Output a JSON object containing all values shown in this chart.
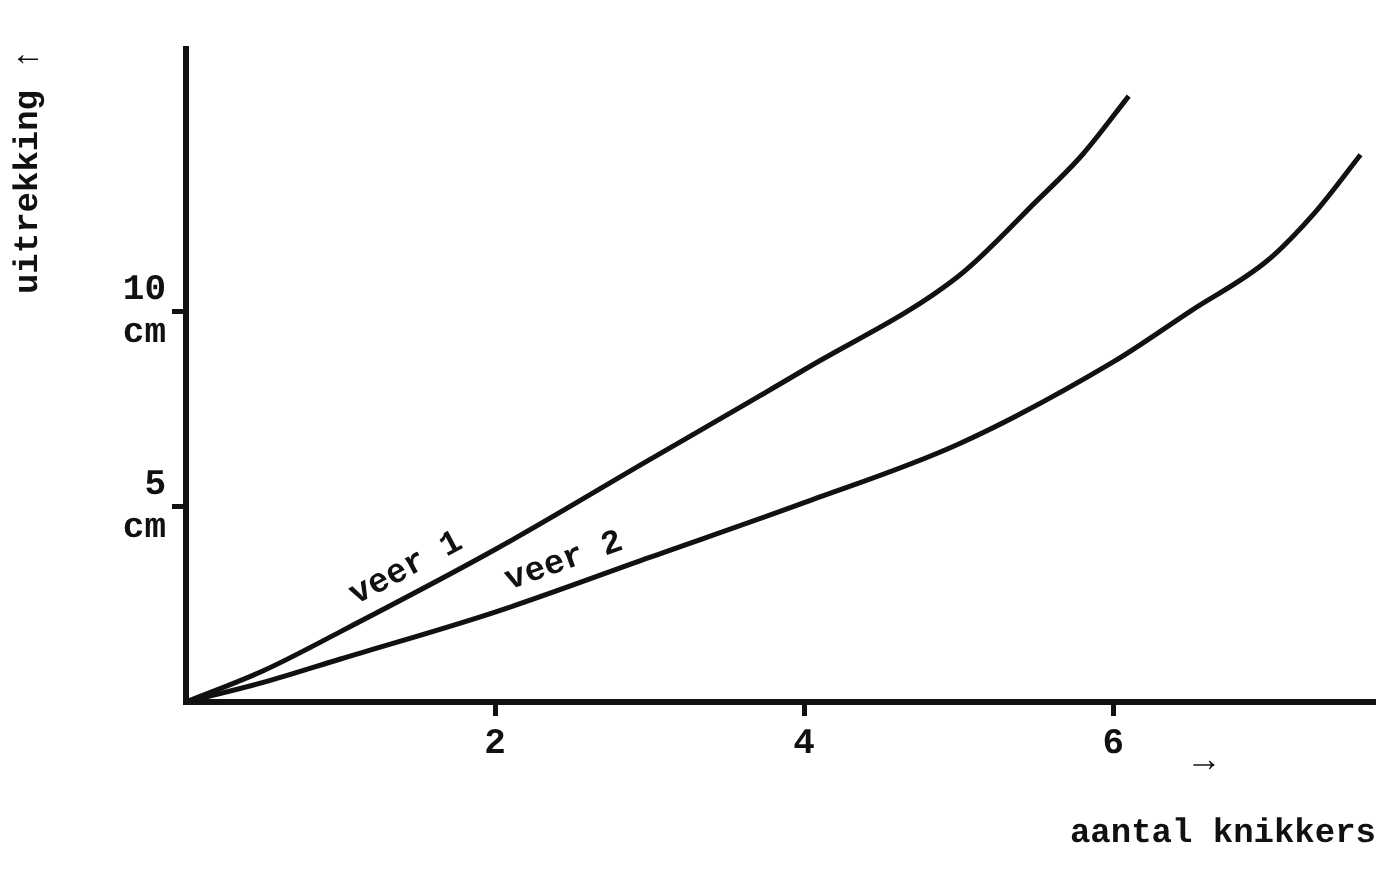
{
  "chart_data": {
    "type": "line",
    "xlabel": "aantal knikkers",
    "ylabel": "uitrekking ↑",
    "annotations": [
      "→"
    ],
    "series": [
      {
        "name": "veer 1",
        "color": "#111111",
        "x": [
          0,
          0.5,
          1,
          2,
          3,
          4,
          5,
          5.5,
          5.8,
          6.1
        ],
        "values": [
          0,
          0.8,
          1.8,
          3.9,
          6.2,
          8.5,
          10.9,
          12.8,
          14.0,
          15.5
        ]
      },
      {
        "name": "veer 2",
        "color": "#111111",
        "x": [
          0,
          0.5,
          1,
          2,
          3,
          4,
          5,
          6,
          6.5,
          7,
          7.3,
          7.6
        ],
        "values": [
          0,
          0.5,
          1.1,
          2.3,
          3.7,
          5.1,
          6.6,
          8.7,
          10.0,
          11.3,
          12.5,
          14.0
        ]
      }
    ],
    "xlim": [
      0,
      7.7
    ],
    "ylim": [
      0,
      16.7
    ],
    "xticks": [
      2,
      4,
      6
    ],
    "yticks": [
      {
        "value": 5,
        "label": "5 cm"
      },
      {
        "value": 10,
        "label": "10 cm"
      }
    ],
    "grid": false,
    "legend": false,
    "marker": "none",
    "line_style": "solid"
  }
}
